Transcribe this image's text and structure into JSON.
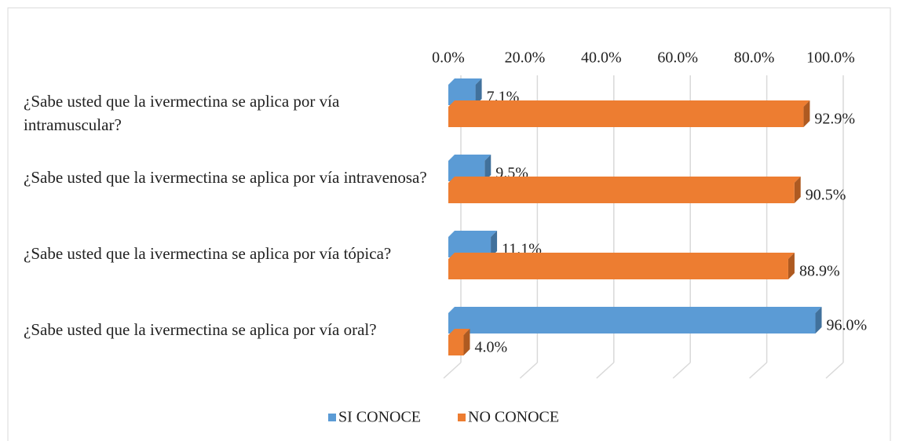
{
  "chart_data": {
    "type": "bar",
    "orientation": "horizontal",
    "categories": [
      "¿Sabe usted que la ivermectina se aplica por vía intramuscular?",
      "¿Sabe usted que la ivermectina se aplica por vía intravenosa?",
      "¿Sabe usted que la ivermectina se aplica por vía tópica?",
      "¿Sabe usted que la ivermectina se aplica por vía oral?"
    ],
    "series": [
      {
        "name": "SI CONOCE",
        "color": "#5b9bd5",
        "values": [
          7.1,
          9.5,
          11.1,
          96.0
        ],
        "value_labels": [
          "7.1%",
          "9.5%",
          "11.1%",
          "96.0%"
        ]
      },
      {
        "name": "NO CONOCE",
        "color": "#ed7d31",
        "values": [
          92.9,
          90.5,
          88.9,
          4.0
        ],
        "value_labels": [
          "92.9%",
          "90.5%",
          "88.9%",
          "4.0%"
        ]
      }
    ],
    "xlim": [
      0,
      100
    ],
    "xticks": [
      {
        "value": 0,
        "label": "0.0%"
      },
      {
        "value": 20,
        "label": "20.0%"
      },
      {
        "value": 40,
        "label": "40.0%"
      },
      {
        "value": 60,
        "label": "60.0%"
      },
      {
        "value": 80,
        "label": "80.0%"
      },
      {
        "value": 100,
        "label": "100.0%"
      }
    ],
    "grid": true,
    "legend": "bottom"
  }
}
